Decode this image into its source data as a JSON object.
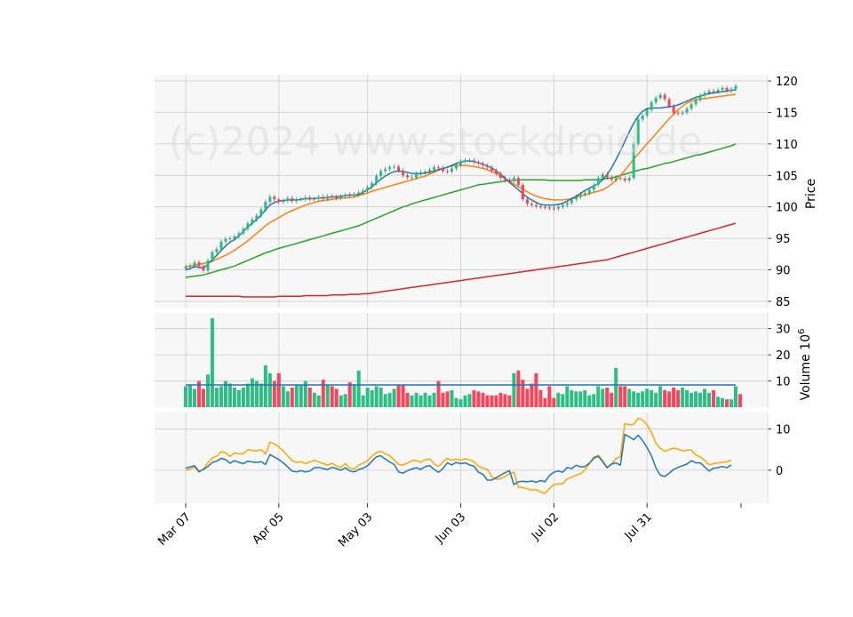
{
  "watermark": "(c)2024 www.stockdroid.de",
  "colors": {
    "up": "#2ebd85",
    "down": "#f6465d",
    "ma_fast": "#1f77b4",
    "ma_mid": "#ff7f0e",
    "ma_slow": "#2ca02c",
    "ma_long": "#d62728",
    "volume_ma": "#1f77b4",
    "indicator_a": "#1f77b4",
    "indicator_b": "#ffa500",
    "panel_bg": "#f7f7f7",
    "grid": "#cccccc"
  },
  "chart_data": [
    {
      "type": "candlestick",
      "ylabel": "Price",
      "ylim": [
        84,
        121
      ],
      "yticks": [
        85,
        90,
        95,
        100,
        105,
        110,
        115,
        120
      ],
      "xticks": [
        {
          "label": "Mar 07",
          "index": 0
        },
        {
          "label": "Apr 05",
          "index": 21
        },
        {
          "label": "May 03",
          "index": 41
        },
        {
          "label": "Jun 03",
          "index": 62
        },
        {
          "label": "Jul 02",
          "index": 83
        },
        {
          "label": "Jul 31",
          "index": 104
        }
      ],
      "n_periods": 125,
      "closes": [
        90.5,
        90.7,
        91.2,
        90.6,
        89.9,
        91.5,
        92.8,
        93.3,
        94.5,
        94.9,
        95.0,
        95.3,
        95.8,
        96.5,
        97.4,
        98.0,
        98.6,
        99.6,
        100.8,
        101.6,
        101.2,
        100.8,
        101.0,
        101.4,
        100.9,
        101.2,
        101.2,
        101.5,
        101.2,
        101.3,
        101.6,
        101.3,
        101.7,
        101.6,
        101.4,
        101.7,
        101.9,
        101.8,
        102.0,
        102.3,
        102.6,
        103.1,
        103.8,
        104.9,
        105.7,
        106.0,
        106.3,
        106.4,
        105.8,
        105.0,
        104.7,
        104.7,
        105.3,
        105.5,
        105.6,
        105.9,
        106.3,
        106.2,
        105.7,
        105.6,
        106.1,
        106.7,
        107.2,
        107.4,
        107.4,
        107.1,
        106.9,
        106.6,
        106.3,
        105.8,
        105.3,
        104.6,
        104.3,
        104.1,
        104.6,
        103.5,
        101.2,
        100.5,
        100.3,
        100.1,
        100.0,
        99.9,
        99.8,
        99.7,
        100.0,
        100.3,
        100.6,
        101.2,
        101.6,
        102.0,
        102.2,
        102.7,
        103.5,
        104.6,
        105.2,
        104.7,
        104.3,
        104.6,
        104.5,
        104.2,
        104.6,
        110.0,
        113.9,
        114.5,
        115.4,
        116.6,
        117.3,
        117.8,
        117.1,
        116.0,
        114.9,
        114.8,
        115.0,
        115.6,
        116.3,
        117.0,
        117.7,
        118.1,
        118.4,
        118.3,
        118.6,
        118.9,
        118.4,
        118.7,
        119.2
      ],
      "series": [
        {
          "values": [
            90.0,
            90.2,
            90.5,
            90.4,
            90.3,
            90.9,
            91.6,
            92.3,
            93.1,
            93.8,
            94.4,
            94.8,
            95.4,
            96.1,
            96.8,
            97.4,
            98.0,
            98.7,
            99.5,
            100.3,
            100.7,
            100.9,
            101.0,
            101.1,
            101.1,
            101.1,
            101.2,
            101.3,
            101.3,
            101.3,
            101.4,
            101.4,
            101.5,
            101.6,
            101.6,
            101.7,
            101.8,
            101.9,
            101.9,
            102.0,
            102.3,
            102.7,
            103.2,
            103.8,
            104.4,
            104.9,
            105.3,
            105.6,
            105.7,
            105.6,
            105.5,
            105.3,
            105.3,
            105.3,
            105.4,
            105.5,
            105.7,
            105.9,
            106.1,
            106.3,
            106.6,
            106.9,
            107.1,
            107.3,
            107.3,
            107.2,
            107.0,
            106.8,
            106.5,
            106.2,
            105.7,
            105.2,
            104.6,
            103.9,
            103.3,
            102.7,
            102.1,
            101.5,
            101.1,
            100.7,
            100.4,
            100.3,
            100.3,
            100.3,
            100.4,
            100.6,
            100.9,
            101.3,
            101.7,
            102.1,
            102.6,
            103.0,
            103.3,
            103.7,
            104.3,
            105.1,
            106.2,
            107.5,
            108.9,
            110.4,
            111.9,
            113.3,
            114.4,
            115.2,
            115.6,
            115.7,
            115.7,
            115.7,
            115.8,
            115.9,
            116.0,
            116.2,
            116.5,
            116.8,
            117.1,
            117.4,
            117.6,
            117.8,
            118.0,
            118.1,
            118.2,
            118.3,
            118.4,
            118.5,
            118.6
          ]
        },
        {
          "values": [
            90.5,
            90.6,
            90.7,
            90.9,
            91.0,
            91.2,
            91.4,
            91.7,
            92.0,
            92.3,
            92.7,
            93.1,
            93.6,
            94.1,
            94.6,
            95.2,
            95.8,
            96.4,
            97.0,
            97.5,
            97.9,
            98.3,
            98.7,
            99.1,
            99.4,
            99.7,
            100.0,
            100.3,
            100.5,
            100.7,
            100.9,
            101.0,
            101.1,
            101.2,
            101.3,
            101.4,
            101.4,
            101.5,
            101.6,
            101.8,
            102.0,
            102.2,
            102.5,
            102.7,
            102.9,
            103.1,
            103.3,
            103.5,
            103.7,
            103.9,
            104.1,
            104.3,
            104.5,
            104.7,
            104.9,
            105.2,
            105.5,
            105.8,
            106.1,
            106.3,
            106.5,
            106.6,
            106.6,
            106.6,
            106.5,
            106.4,
            106.3,
            106.1,
            105.9,
            105.6,
            105.3,
            104.9,
            104.5,
            104.1,
            103.6,
            103.2,
            102.8,
            102.4,
            102.0,
            101.7,
            101.5,
            101.3,
            101.2,
            101.1,
            101.1,
            101.1,
            101.2,
            101.3,
            101.5,
            101.7,
            101.9,
            102.1,
            102.3,
            102.5,
            102.7,
            103.1,
            103.6,
            104.2,
            105.0,
            105.8,
            106.7,
            107.6,
            108.4,
            109.2,
            110.0,
            110.8,
            111.6,
            112.4,
            113.2,
            114.0,
            114.7,
            115.4,
            116.0,
            116.5,
            116.8,
            117.0,
            117.1,
            117.2,
            117.3,
            117.4,
            117.5,
            117.6,
            117.7,
            117.8,
            117.9
          ]
        },
        {
          "values": [
            88.8,
            88.9,
            89.0,
            89.1,
            89.2,
            89.4,
            89.6,
            89.8,
            90.0,
            90.2,
            90.4,
            90.6,
            90.9,
            91.2,
            91.5,
            91.8,
            92.1,
            92.4,
            92.7,
            92.9,
            93.2,
            93.4,
            93.6,
            93.8,
            94.0,
            94.2,
            94.4,
            94.6,
            94.8,
            95.0,
            95.2,
            95.4,
            95.6,
            95.8,
            96.0,
            96.2,
            96.4,
            96.6,
            96.8,
            97.0,
            97.3,
            97.6,
            97.9,
            98.2,
            98.5,
            98.8,
            99.1,
            99.4,
            99.7,
            100.0,
            100.2,
            100.5,
            100.7,
            100.9,
            101.1,
            101.3,
            101.5,
            101.7,
            101.9,
            102.1,
            102.3,
            102.5,
            102.7,
            102.9,
            103.1,
            103.3,
            103.5,
            103.6,
            103.7,
            103.8,
            103.9,
            104.0,
            104.1,
            104.2,
            104.2,
            104.3,
            104.3,
            104.3,
            104.3,
            104.3,
            104.3,
            104.3,
            104.2,
            104.2,
            104.2,
            104.2,
            104.2,
            104.2,
            104.2,
            104.2,
            104.3,
            104.3,
            104.3,
            104.3,
            104.4,
            104.5,
            104.6,
            104.8,
            105.0,
            105.2,
            105.4,
            105.6,
            105.8,
            106.0,
            106.1,
            106.3,
            106.5,
            106.7,
            106.9,
            107.0,
            107.2,
            107.4,
            107.6,
            107.8,
            108.0,
            108.2,
            108.3,
            108.5,
            108.7,
            108.9,
            109.1,
            109.3,
            109.5,
            109.7,
            110.0
          ]
        },
        {
          "values": [
            85.8,
            85.8,
            85.8,
            85.8,
            85.8,
            85.8,
            85.8,
            85.8,
            85.8,
            85.8,
            85.8,
            85.8,
            85.8,
            85.7,
            85.7,
            85.7,
            85.7,
            85.7,
            85.7,
            85.7,
            85.7,
            85.8,
            85.8,
            85.8,
            85.8,
            85.8,
            85.8,
            85.9,
            85.9,
            85.9,
            85.9,
            85.9,
            85.9,
            86.0,
            86.0,
            86.0,
            86.0,
            86.1,
            86.1,
            86.1,
            86.2,
            86.2,
            86.3,
            86.4,
            86.5,
            86.6,
            86.7,
            86.8,
            86.9,
            87.0,
            87.1,
            87.2,
            87.3,
            87.4,
            87.5,
            87.6,
            87.7,
            87.8,
            87.9,
            88.0,
            88.1,
            88.2,
            88.3,
            88.4,
            88.5,
            88.6,
            88.7,
            88.8,
            88.9,
            89.0,
            89.1,
            89.2,
            89.3,
            89.4,
            89.5,
            89.6,
            89.7,
            89.8,
            89.9,
            90.0,
            90.1,
            90.2,
            90.3,
            90.4,
            90.5,
            90.6,
            90.7,
            90.8,
            90.9,
            91.0,
            91.1,
            91.2,
            91.3,
            91.4,
            91.5,
            91.6,
            91.8,
            92.0,
            92.2,
            92.4,
            92.6,
            92.8,
            93.0,
            93.2,
            93.4,
            93.6,
            93.8,
            94.0,
            94.2,
            94.4,
            94.6,
            94.8,
            95.0,
            95.2,
            95.4,
            95.6,
            95.8,
            96.0,
            96.2,
            96.4,
            96.6,
            96.8,
            97.0,
            97.2,
            97.4
          ]
        }
      ]
    },
    {
      "type": "bar",
      "ylabel": "Volume",
      "yunit": "10",
      "yunit_exp": "6",
      "ylim": [
        0,
        36
      ],
      "yticks": [
        10,
        20,
        30
      ],
      "volume_ma": 8.5,
      "values": [
        8,
        8.5,
        7,
        10,
        7,
        12.5,
        34,
        7.5,
        8,
        10,
        9,
        7.5,
        6.5,
        7.5,
        9,
        11,
        10,
        9,
        16,
        13,
        10,
        13,
        8,
        6,
        7.5,
        8.5,
        8.5,
        10,
        7.5,
        5.5,
        4.5,
        10.5,
        8.5,
        8,
        7,
        4.5,
        5,
        9.5,
        8.5,
        14,
        4.5,
        7.5,
        6.5,
        8,
        7.5,
        5,
        5.5,
        7,
        8.5,
        8.5,
        5.5,
        4.5,
        5.5,
        4.5,
        5.5,
        4.5,
        5.5,
        10,
        5.5,
        6,
        6.5,
        3.5,
        3,
        4.5,
        5,
        6.5,
        6,
        5.5,
        4.5,
        4.5,
        4.5,
        5.5,
        5,
        4.5,
        13,
        14,
        10.5,
        7,
        9,
        13,
        6.5,
        3.5,
        8,
        3.5,
        5.5,
        5,
        8,
        6.5,
        6,
        6,
        6.5,
        4.5,
        5,
        8,
        7,
        7.5,
        5.5,
        15,
        8,
        8,
        7,
        6,
        5.5,
        6,
        7,
        6.5,
        5.5,
        8,
        6.5,
        6,
        7.5,
        6.5,
        7.5,
        6.5,
        5.5,
        6,
        5.5,
        7,
        5.5,
        6.5,
        4,
        3.5,
        3,
        3,
        8,
        5
      ]
    },
    {
      "type": "line",
      "ylim": [
        -8,
        14
      ],
      "yticks": [
        0,
        10
      ],
      "series": [
        {
          "values": [
            0.5,
            0.8,
            1.1,
            -0.3,
            0.2,
            0.9,
            1.9,
            2.2,
            2.9,
            2.6,
            1.7,
            2.3,
            1.9,
            1.6,
            2.2,
            2.0,
            1.9,
            2.1,
            1.4,
            3.8,
            3.2,
            2.6,
            1.8,
            0.8,
            -0.2,
            -0.4,
            -0.1,
            -0.4,
            -0.2,
            0.6,
            0.7,
            0.4,
            0.2,
            0.7,
            0.4,
            0.0,
            0.6,
            -0.2,
            -0.4,
            0.2,
            0.5,
            1.1,
            2.2,
            3.3,
            3.5,
            2.7,
            2.0,
            1.4,
            -0.4,
            -0.7,
            -0.1,
            0.3,
            0.6,
            0.2,
            0.9,
            1.1,
            0.2,
            -0.5,
            0.4,
            1.8,
            1.3,
            1.9,
            1.6,
            1.8,
            1.3,
            1.0,
            -0.5,
            -1.0,
            -2.4,
            -2.4,
            -1.8,
            -1.2,
            -0.6,
            -0.1,
            -3.5,
            -2.8,
            -2.7,
            -2.8,
            -2.6,
            -2.9,
            -2.5,
            -2.8,
            -1.3,
            -0.5,
            -0.2,
            -0.5,
            0.7,
            0.4,
            1.2,
            0.8,
            0.9,
            1.7,
            2.9,
            3.4,
            2.1,
            0.6,
            1.5,
            1.8,
            1.2,
            8.7,
            8.1,
            7.4,
            8.5,
            7.2,
            5.5,
            3.5,
            0.6,
            -1.2,
            -1.5,
            -0.7,
            0.2,
            0.7,
            1.1,
            1.5,
            2.3,
            1.8,
            1.8,
            0.8,
            -0.2,
            0.5,
            0.6,
            0.9,
            0.6,
            1.3
          ]
        },
        {
          "values": [
            0.0,
            0.3,
            0.8,
            -0.5,
            0.3,
            1.8,
            3.0,
            3.4,
            4.5,
            4.2,
            3.3,
            4.2,
            4.0,
            4.0,
            5.0,
            4.8,
            4.7,
            5.0,
            3.9,
            6.8,
            6.4,
            5.6,
            4.7,
            3.5,
            2.3,
            1.9,
            2.1,
            1.6,
            2.0,
            2.4,
            2.0,
            1.6,
            1.2,
            1.7,
            1.0,
            0.7,
            1.6,
            0.5,
            0.3,
            1.2,
            1.7,
            2.3,
            3.4,
            4.3,
            4.6,
            4.0,
            3.5,
            2.5,
            1.4,
            1.3,
            1.7,
            2.3,
            2.4,
            1.9,
            2.6,
            2.7,
            1.6,
            0.9,
            2.0,
            2.9,
            2.4,
            2.7,
            2.4,
            2.8,
            2.5,
            2.1,
            0.9,
            0.5,
            0.2,
            -1.6,
            -2.2,
            -2.0,
            -1.5,
            -0.8,
            -0.5,
            -4.1,
            -4.2,
            -4.5,
            -4.8,
            -4.7,
            -5.3,
            -5.6,
            -4.5,
            -3.5,
            -3.3,
            -3.3,
            -2.1,
            -1.7,
            -1.2,
            -0.9,
            0.1,
            1.6,
            3.2,
            3.6,
            2.4,
            0.7,
            1.5,
            2.8,
            3.3,
            11.3,
            11.0,
            11.1,
            12.6,
            12.2,
            11.0,
            9.2,
            6.6,
            5.3,
            4.6,
            5.0,
            5.4,
            5.1,
            4.7,
            4.9,
            4.9,
            3.7,
            3.2,
            2.4,
            1.3,
            1.6,
            1.8,
            1.9,
            2.0,
            2.5
          ]
        }
      ]
    }
  ]
}
